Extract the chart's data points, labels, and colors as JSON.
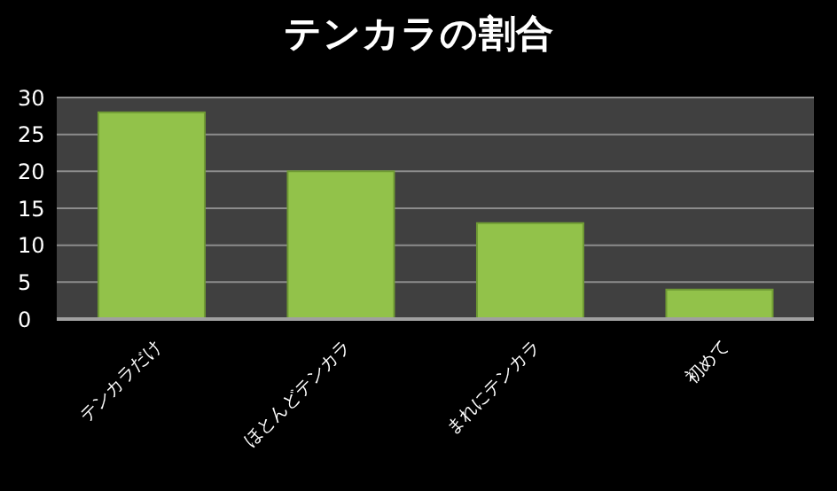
{
  "chart_data": {
    "type": "bar",
    "title": "テンカラの割合",
    "categories": [
      "テンカラだけ",
      "ほとんどテンカラ",
      "まれにテンカラ",
      "初めて"
    ],
    "values": [
      28,
      20,
      13,
      4
    ],
    "color": "#92c24a",
    "ylim": [
      0,
      30
    ],
    "yticks": [
      0,
      5,
      10,
      15,
      20,
      25,
      30
    ],
    "grid": "y"
  }
}
